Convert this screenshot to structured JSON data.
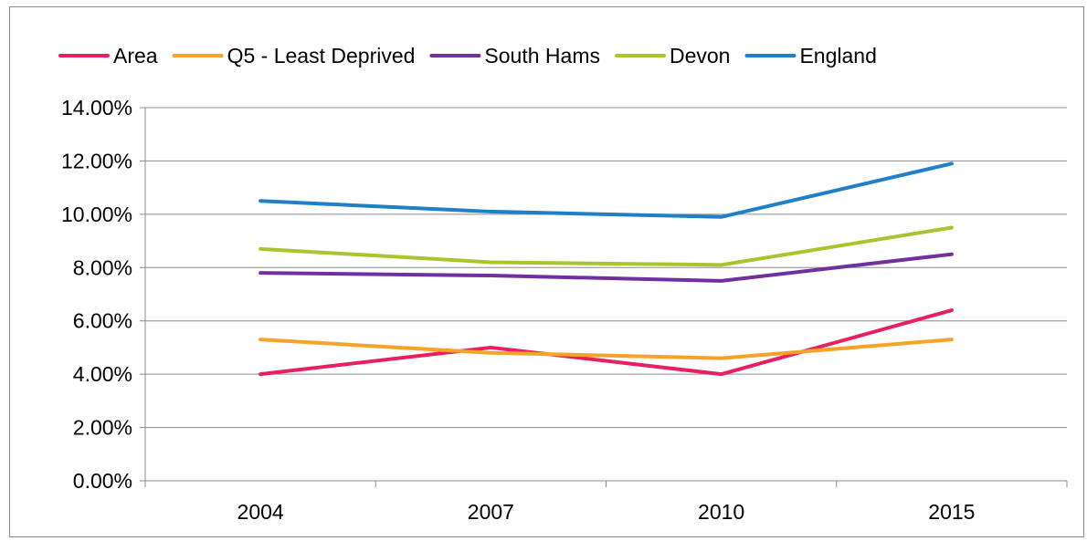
{
  "chart_data": {
    "type": "line",
    "title": "",
    "xlabel": "",
    "ylabel": "",
    "categories": [
      "2004",
      "2007",
      "2010",
      "2015"
    ],
    "y_ticks": [
      "0.00%",
      "2.00%",
      "4.00%",
      "6.00%",
      "8.00%",
      "10.00%",
      "12.00%",
      "14.00%"
    ],
    "ylim": [
      0,
      0.14
    ],
    "grid": "horizontal",
    "legend_position": "top",
    "series": [
      {
        "name": "Area",
        "color": "#e8205f",
        "values": [
          0.04,
          0.05,
          0.04,
          0.064
        ]
      },
      {
        "name": "Q5 - Least Deprived",
        "color": "#f7a229",
        "values": [
          0.053,
          0.048,
          0.046,
          0.053
        ]
      },
      {
        "name": "South Hams",
        "color": "#7030a0",
        "values": [
          0.078,
          0.077,
          0.075,
          0.085
        ]
      },
      {
        "name": "Devon",
        "color": "#a9c52d",
        "values": [
          0.087,
          0.082,
          0.081,
          0.095
        ]
      },
      {
        "name": "England",
        "color": "#1f7fc7",
        "values": [
          0.105,
          0.101,
          0.099,
          0.119
        ]
      }
    ]
  }
}
